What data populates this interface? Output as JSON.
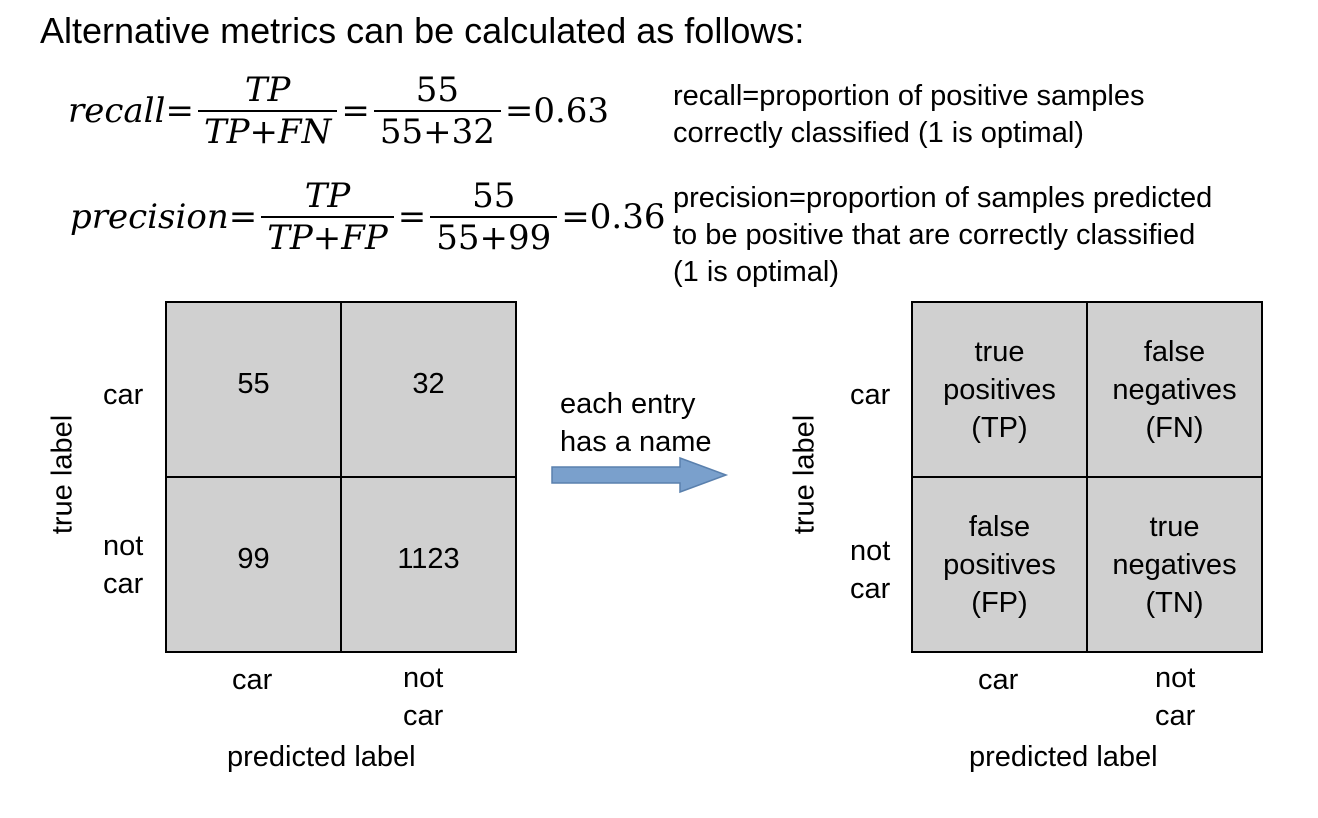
{
  "title": "Alternative metrics can be calculated as follows:",
  "recall": {
    "name": "recall",
    "eq": "=",
    "num1": "TP",
    "den1": "TP+FN",
    "num2": "55",
    "den2": "55+32",
    "result": "=0.63",
    "description_line1": "recall=proportion of positive samples",
    "description_line2": "correctly classified (1 is optimal)"
  },
  "precision": {
    "name": "precision",
    "eq": "=",
    "num1": "TP",
    "den1": "TP+FP",
    "num2": "55",
    "den2": "55+99",
    "result": "=0.36",
    "description_line1": "precision=proportion of samples predicted",
    "description_line2": "to be positive that are correctly classified",
    "description_line3": "(1 is optimal)"
  },
  "left_matrix": {
    "row_labels": [
      "car",
      "not",
      "car"
    ],
    "cells": [
      "55",
      "32",
      "99",
      "1123"
    ],
    "col_labels": [
      "car",
      "not",
      "car"
    ],
    "x_axis_label": "predicted label",
    "y_axis_label": "true label"
  },
  "arrow": {
    "line1": "each entry",
    "line2": "has a name",
    "color": "#7aa0cc"
  },
  "right_matrix": {
    "row_labels": [
      "car",
      "not",
      "car"
    ],
    "cells": [
      [
        "true",
        "positives",
        "(TP)"
      ],
      [
        "false",
        "negatives",
        "(FN)"
      ],
      [
        "false",
        "positives",
        "(FP)"
      ],
      [
        "true",
        "negatives",
        "(TN)"
      ]
    ],
    "col_labels": [
      "car",
      "not",
      "car"
    ],
    "x_axis_label": "predicted label",
    "y_axis_label": "true label"
  },
  "cell_color": "#d0d0d0"
}
